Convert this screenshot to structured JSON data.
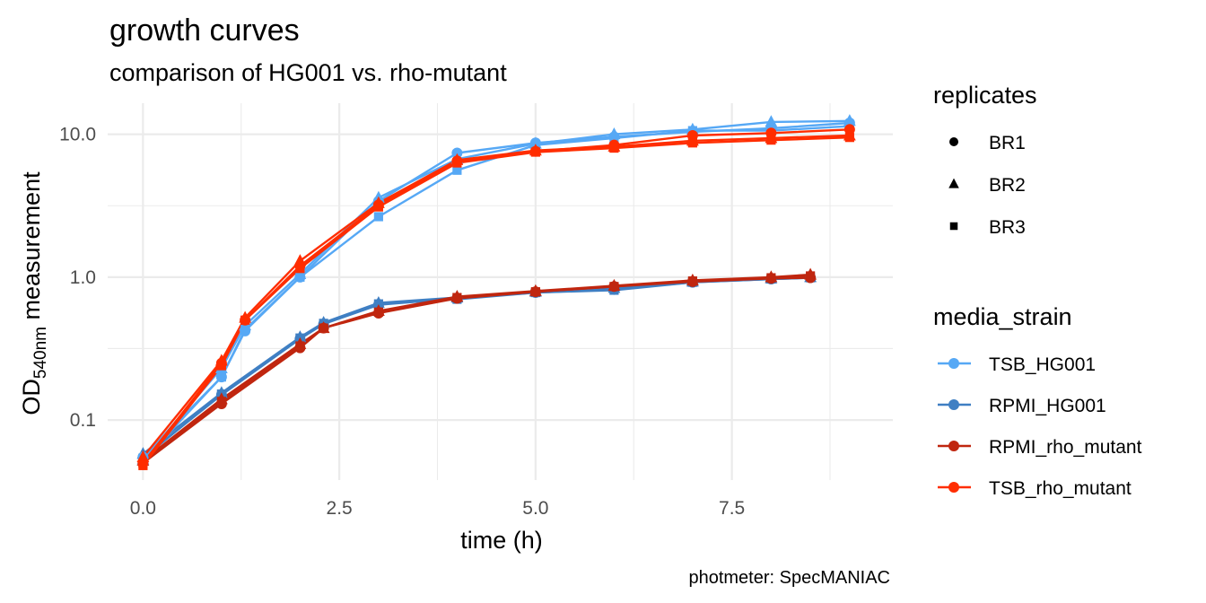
{
  "chart_data": {
    "type": "line",
    "title": "growth curves",
    "subtitle": "comparison of HG001 vs. rho-mutant",
    "caption": "photmeter: SpecMANIAC",
    "xlabel": "time (h)",
    "ylabel": {
      "main": "OD",
      "subscript": "540nm",
      "suffix": " measurement"
    },
    "xlim": [
      -0.45,
      9.55
    ],
    "ylim": [
      0.038,
      16.5
    ],
    "y_scale": "log10",
    "grid": true,
    "x_ticks": [
      0,
      2.5,
      5,
      7.5
    ],
    "x_tick_labels": [
      "0.0",
      "2.5",
      "5.0",
      "7.5"
    ],
    "y_ticks": [
      0.1,
      1,
      10
    ],
    "y_tick_labels": [
      "0.1",
      "1.0",
      "10.0"
    ],
    "legend_placement": "right",
    "legends": [
      {
        "title": "replicates",
        "kind": "shape",
        "items": [
          {
            "label": "BR1",
            "shape": "circle"
          },
          {
            "label": "BR2",
            "shape": "triangle"
          },
          {
            "label": "BR3",
            "shape": "square"
          }
        ]
      },
      {
        "title": "media_strain",
        "kind": "color",
        "items": [
          {
            "label": "TSB_HG001",
            "color": "#56a8f5"
          },
          {
            "label": "RPMI_HG001",
            "color": "#3f7fc3"
          },
          {
            "label": "RPMI_rho_mutant",
            "color": "#c0260f"
          },
          {
            "label": "TSB_rho_mutant",
            "color": "#ff2d00"
          }
        ]
      }
    ],
    "series": [
      {
        "media_strain": "RPMI_HG001",
        "replicate": "BR1",
        "x": [
          0,
          1,
          2,
          2.3,
          3,
          4,
          5,
          6,
          7,
          8,
          8.5
        ],
        "y": [
          0.055,
          0.15,
          0.37,
          0.47,
          0.64,
          0.71,
          0.78,
          0.82,
          0.92,
          0.97,
          0.99
        ]
      },
      {
        "media_strain": "RPMI_HG001",
        "replicate": "BR2",
        "x": [
          0,
          1,
          2,
          2.3,
          3,
          4,
          5,
          6,
          7,
          8,
          8.5
        ],
        "y": [
          0.058,
          0.155,
          0.38,
          0.48,
          0.66,
          0.72,
          0.79,
          0.84,
          0.93,
          0.98,
          1.0
        ]
      },
      {
        "media_strain": "RPMI_HG001",
        "replicate": "BR3",
        "x": [
          0,
          1,
          2,
          2.3,
          3,
          4,
          5,
          6,
          7,
          8,
          8.5
        ],
        "y": [
          0.054,
          0.152,
          0.375,
          0.475,
          0.65,
          0.7,
          0.78,
          0.81,
          0.92,
          0.97,
          0.99
        ]
      },
      {
        "media_strain": "RPMI_rho_mutant",
        "replicate": "BR1",
        "x": [
          0,
          1,
          2,
          2.3,
          3,
          4,
          5,
          6,
          7,
          8,
          8.5
        ],
        "y": [
          0.05,
          0.13,
          0.32,
          0.44,
          0.56,
          0.71,
          0.79,
          0.86,
          0.93,
          0.98,
          0.99
        ]
      },
      {
        "media_strain": "RPMI_rho_mutant",
        "replicate": "BR2",
        "x": [
          0,
          1,
          2,
          2.3,
          3,
          4,
          5,
          6,
          7,
          8,
          8.5
        ],
        "y": [
          0.052,
          0.14,
          0.34,
          0.44,
          0.58,
          0.73,
          0.8,
          0.87,
          0.95,
          1.0,
          1.04
        ]
      },
      {
        "media_strain": "RPMI_rho_mutant",
        "replicate": "BR3",
        "x": [
          0,
          1,
          2,
          2.3,
          3,
          4,
          5,
          6,
          7,
          8,
          8.5
        ],
        "y": [
          0.05,
          0.135,
          0.33,
          0.44,
          0.57,
          0.72,
          0.79,
          0.86,
          0.94,
          0.99,
          1.02
        ]
      },
      {
        "media_strain": "TSB_HG001",
        "replicate": "BR1",
        "x": [
          0,
          1,
          1.3,
          2,
          3,
          4,
          5,
          6,
          7,
          8,
          9
        ],
        "y": [
          0.055,
          0.2,
          0.42,
          1.0,
          3.4,
          7.4,
          8.7,
          9.6,
          10.4,
          11.0,
          12.0
        ]
      },
      {
        "media_strain": "TSB_HG001",
        "replicate": "BR2",
        "x": [
          0,
          1,
          1.3,
          2,
          3,
          4,
          5,
          6,
          7,
          8,
          9
        ],
        "y": [
          0.053,
          0.23,
          0.46,
          1.05,
          3.6,
          6.7,
          8.6,
          10.0,
          10.8,
          12.2,
          12.4
        ]
      },
      {
        "media_strain": "TSB_HG001",
        "replicate": "BR3",
        "x": [
          0,
          1,
          1.3,
          2,
          3,
          4,
          5,
          6,
          7,
          8,
          9
        ],
        "y": [
          0.052,
          0.2,
          0.43,
          1.0,
          2.65,
          5.6,
          8.4,
          9.4,
          10.6,
          10.6,
          11.4
        ]
      },
      {
        "media_strain": "TSB_rho_mutant",
        "replicate": "BR1",
        "x": [
          0,
          1,
          1.3,
          2,
          3,
          4,
          5,
          6,
          7,
          8,
          9
        ],
        "y": [
          0.05,
          0.25,
          0.5,
          1.2,
          3.2,
          6.5,
          7.6,
          8.4,
          9.8,
          10.2,
          10.8
        ]
      },
      {
        "media_strain": "TSB_rho_mutant",
        "replicate": "BR2",
        "x": [
          0,
          1,
          1.3,
          2,
          3,
          4,
          5,
          6,
          7,
          8,
          9
        ],
        "y": [
          0.055,
          0.26,
          0.52,
          1.3,
          3.3,
          6.6,
          7.7,
          8.2,
          9.0,
          9.4,
          9.8
        ]
      },
      {
        "media_strain": "TSB_rho_mutant",
        "replicate": "BR3",
        "x": [
          0,
          1,
          1.3,
          2,
          3,
          4,
          5,
          6,
          7,
          8,
          9
        ],
        "y": [
          0.048,
          0.24,
          0.5,
          1.15,
          3.1,
          6.3,
          7.5,
          8.0,
          8.7,
          9.1,
          9.5
        ]
      }
    ]
  }
}
